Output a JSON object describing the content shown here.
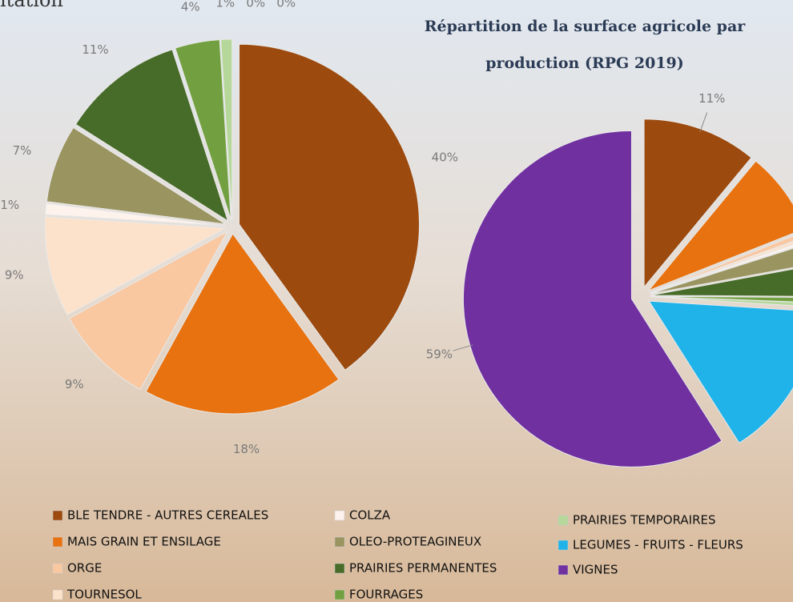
{
  "chart_data": [
    {
      "type": "pie",
      "title": "itation",
      "categories": [
        "BLE TENDRE - AUTRES CEREALES",
        "MAIS GRAIN ET ENSILAGE",
        "ORGE",
        "TOURNESOL",
        "COLZA",
        "OLEO-PROTEAGINEUX",
        "PRAIRIES PERMANENTES",
        "FOURRAGES",
        "PRAIRIES TEMPORAIRES",
        "LEGUMES - FRUITS - FLEURS",
        "VIGNES"
      ],
      "values": [
        40,
        18,
        9,
        9,
        1,
        7,
        11,
        4,
        1,
        0,
        0
      ],
      "value_labels": [
        "40%",
        "18%",
        "9%",
        "9%",
        "1%",
        "7%",
        "11%",
        "4%",
        "1%",
        "0%",
        "0%"
      ],
      "colors": [
        "#9c4a0e",
        "#e8720f",
        "#f9c7a0",
        "#fde2cb",
        "#fdf2ec",
        "#9a9460",
        "#476b28",
        "#72a040",
        "#b5d89a",
        "#1fb3ea",
        "#7030a0"
      ]
    },
    {
      "type": "pie",
      "title": "Répartition de la surface agricole par production (RPG 2019)",
      "categories": [
        "BLE TENDRE - AUTRES CEREALES",
        "MAIS GRAIN ET ENSILAGE",
        "ORGE",
        "TOURNESOL",
        "COLZA",
        "OLEO-PROTEAGINEUX",
        "PRAIRIES PERMANENTES",
        "FOURRAGES",
        "PRAIRIES TEMPORAIRES",
        "LEGUMES - FRUITS - FLEURS",
        "VIGNES"
      ],
      "values": [
        11,
        8,
        0.5,
        0.3,
        0.3,
        2,
        3,
        0.5,
        0.4,
        15,
        59
      ],
      "value_labels": [
        "11%",
        null,
        null,
        null,
        null,
        null,
        null,
        null,
        null,
        null,
        "59%"
      ],
      "colors": [
        "#9c4a0e",
        "#e8720f",
        "#f9c7a0",
        "#fde2cb",
        "#fdf2ec",
        "#9a9460",
        "#476b28",
        "#72a040",
        "#b5d89a",
        "#1fb3ea",
        "#7030a0"
      ]
    }
  ]
}
